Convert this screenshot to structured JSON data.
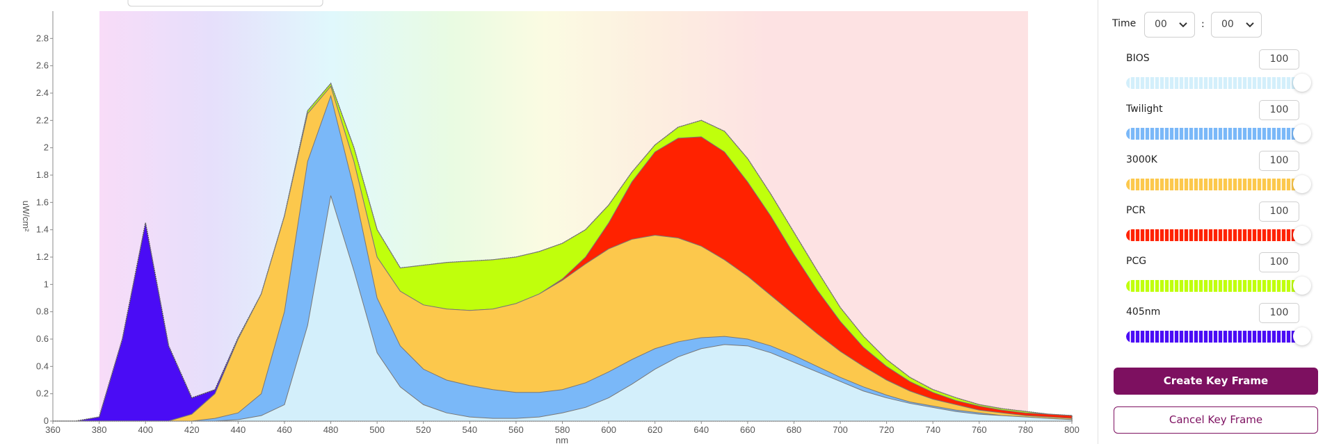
{
  "chart_data": {
    "type": "stacked_area",
    "x_label": "nm",
    "y_label": "uW/cm²",
    "xlim": [
      360,
      800
    ],
    "ylim": [
      0,
      3
    ],
    "xticks": [
      360,
      380,
      400,
      420,
      440,
      460,
      480,
      500,
      520,
      540,
      560,
      580,
      600,
      620,
      640,
      660,
      680,
      700,
      720,
      740,
      760,
      780,
      800
    ],
    "yticks": [
      0,
      0.2,
      0.4,
      0.6,
      0.8,
      1,
      1.2,
      1.4,
      1.6,
      1.8,
      2,
      2.2,
      2.4,
      2.6,
      2.8
    ],
    "x": [
      360,
      370,
      380,
      390,
      400,
      410,
      420,
      430,
      440,
      450,
      460,
      470,
      480,
      490,
      500,
      510,
      520,
      530,
      540,
      550,
      560,
      570,
      580,
      590,
      600,
      610,
      620,
      630,
      640,
      650,
      660,
      670,
      680,
      690,
      700,
      710,
      720,
      730,
      740,
      750,
      760,
      770,
      780,
      790,
      800
    ],
    "series": [
      {
        "name": "BIOS",
        "color": "#d3effb",
        "values": [
          0,
          0,
          0,
          0,
          0,
          0,
          0,
          0,
          0.01,
          0.04,
          0.12,
          0.7,
          1.65,
          1.1,
          0.5,
          0.25,
          0.12,
          0.06,
          0.03,
          0.02,
          0.02,
          0.03,
          0.06,
          0.1,
          0.17,
          0.27,
          0.38,
          0.47,
          0.53,
          0.56,
          0.55,
          0.5,
          0.43,
          0.36,
          0.29,
          0.22,
          0.17,
          0.13,
          0.1,
          0.07,
          0.05,
          0.04,
          0.03,
          0.02,
          0.01
        ]
      },
      {
        "name": "Twilight",
        "color": "#7ab8f8",
        "values": [
          0,
          0,
          0,
          0,
          0,
          0,
          0,
          0.02,
          0.05,
          0.16,
          0.68,
          1.2,
          0.73,
          0.6,
          0.4,
          0.3,
          0.26,
          0.24,
          0.23,
          0.21,
          0.19,
          0.18,
          0.17,
          0.18,
          0.19,
          0.18,
          0.15,
          0.11,
          0.08,
          0.06,
          0.05,
          0.05,
          0.05,
          0.04,
          0.03,
          0.03,
          0.02,
          0.01,
          0.01,
          0.01,
          0.01,
          0,
          0,
          0,
          0
        ]
      },
      {
        "name": "3000K",
        "color": "#fcc84c",
        "values": [
          0,
          0,
          0,
          0,
          0,
          0,
          0.05,
          0.18,
          0.54,
          0.73,
          0.7,
          0.35,
          0.07,
          0.2,
          0.3,
          0.4,
          0.47,
          0.52,
          0.55,
          0.59,
          0.65,
          0.72,
          0.8,
          0.87,
          0.9,
          0.88,
          0.83,
          0.76,
          0.67,
          0.56,
          0.46,
          0.37,
          0.3,
          0.24,
          0.19,
          0.15,
          0.11,
          0.08,
          0.05,
          0.04,
          0.02,
          0.02,
          0.01,
          0.01,
          0.01
        ]
      },
      {
        "name": "PCR",
        "color": "#ff2200",
        "values": [
          0,
          0,
          0,
          0,
          0,
          0,
          0,
          0,
          0,
          0,
          0,
          0,
          0,
          0,
          0,
          0,
          0,
          0,
          0,
          0,
          0,
          0,
          0.01,
          0.05,
          0.19,
          0.42,
          0.61,
          0.73,
          0.8,
          0.79,
          0.69,
          0.58,
          0.44,
          0.32,
          0.22,
          0.14,
          0.1,
          0.07,
          0.05,
          0.03,
          0.03,
          0.02,
          0.02,
          0.02,
          0.02
        ]
      },
      {
        "name": "PCG",
        "color": "#c0ff0c",
        "values": [
          0,
          0,
          0,
          0,
          0,
          0,
          0,
          0,
          0,
          0,
          0,
          0.02,
          0.02,
          0.1,
          0.2,
          0.17,
          0.29,
          0.34,
          0.36,
          0.36,
          0.34,
          0.31,
          0.26,
          0.2,
          0.13,
          0.07,
          0.05,
          0.08,
          0.12,
          0.15,
          0.17,
          0.16,
          0.16,
          0.14,
          0.1,
          0.08,
          0.05,
          0.03,
          0.02,
          0.02,
          0.01,
          0.01,
          0.01,
          0,
          0
        ]
      },
      {
        "name": "405nm",
        "color": "#4a0cf5",
        "values": [
          0,
          0,
          0.03,
          0.6,
          1.45,
          0.55,
          0.12,
          0.03,
          0.01,
          0,
          0,
          0,
          0,
          0,
          0,
          0,
          0,
          0,
          0,
          0,
          0,
          0,
          0,
          0,
          0,
          0,
          0,
          0,
          0,
          0,
          0,
          0,
          0,
          0,
          0,
          0,
          0,
          0,
          0,
          0,
          0,
          0,
          0,
          0,
          0
        ]
      }
    ]
  },
  "controls": {
    "time": {
      "label": "Time",
      "hour": "00",
      "separator": ":",
      "minute": "00"
    },
    "channels": [
      {
        "name": "BIOS",
        "value": 100,
        "color": "#d3effb"
      },
      {
        "name": "Twilight",
        "value": 100,
        "color": "#7ab8f8"
      },
      {
        "name": "3000K",
        "value": 100,
        "color": "#fcc84c"
      },
      {
        "name": "PCR",
        "value": 100,
        "color": "#ff2200"
      },
      {
        "name": "PCG",
        "value": 100,
        "color": "#c0ff0c"
      },
      {
        "name": "405nm",
        "value": 100,
        "color": "#4a0cf5"
      }
    ],
    "buttons": [
      "Create Key Frame",
      "Cancel Key Frame"
    ]
  }
}
